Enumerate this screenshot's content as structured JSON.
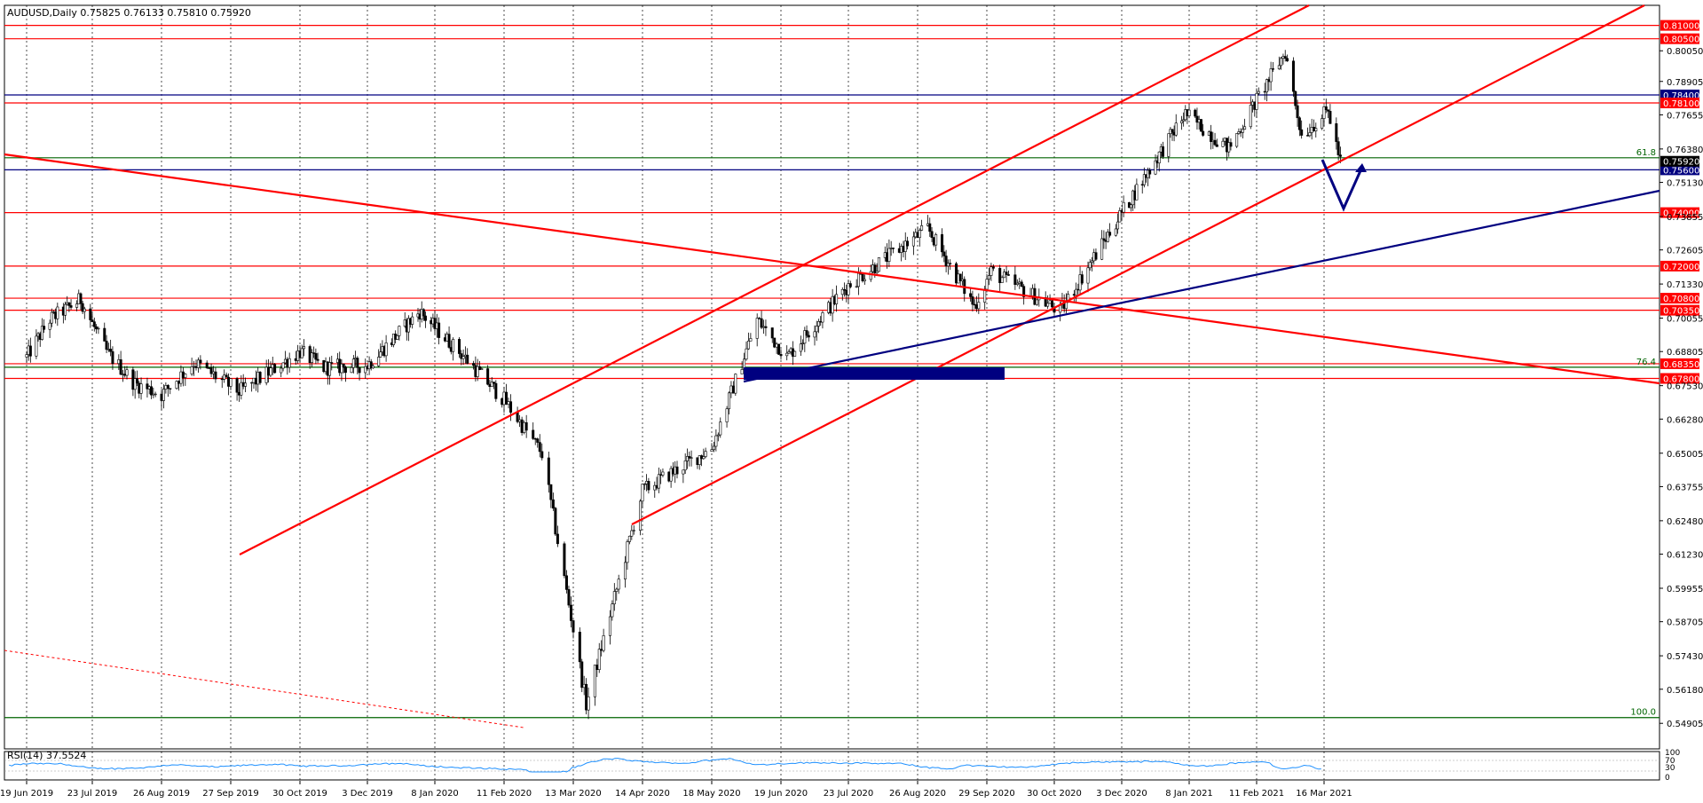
{
  "chart_data": {
    "type": "candlestick",
    "symbol_header": "AUDUSD,Daily  0.75825 0.76133 0.75810 0.75920",
    "price_ticks": [
      "0.80050",
      "0.78905",
      "0.77655",
      "0.76380",
      "0.75130",
      "0.73855",
      "0.72605",
      "0.71330",
      "0.70055",
      "0.68805",
      "0.67530",
      "0.66280",
      "0.65005",
      "0.63755",
      "0.62480",
      "0.61230",
      "0.59955",
      "0.58705",
      "0.57430",
      "0.56180",
      "0.54905"
    ],
    "date_ticks": [
      "19 Jun 2019",
      "23 Jul 2019",
      "26 Aug 2019",
      "27 Sep 2019",
      "30 Oct 2019",
      "3 Dec 2019",
      "8 Jan 2020",
      "11 Feb 2020",
      "13 Mar 2020",
      "14 Apr 2020",
      "18 May 2020",
      "19 Jun 2020",
      "23 Jul 2020",
      "26 Aug 2020",
      "29 Sep 2020",
      "30 Oct 2020",
      "3 Dec 2020",
      "8 Jan 2021",
      "11 Feb 2021",
      "16 Mar 2021"
    ],
    "ylim": [
      0.5395,
      0.8175
    ],
    "horizontal_levels": [
      {
        "label": "0.81000",
        "value": 0.81,
        "color": "#ff0000"
      },
      {
        "label": "0.80500",
        "value": 0.805,
        "color": "#ff0000"
      },
      {
        "label": "0.78400",
        "value": 0.784,
        "color": "#000080"
      },
      {
        "label": "0.78100",
        "value": 0.781,
        "color": "#ff0000"
      },
      {
        "label": "0.75600",
        "value": 0.756,
        "color": "#000080"
      },
      {
        "label": "0.74000",
        "value": 0.74,
        "color": "#ff0000"
      },
      {
        "label": "0.72000",
        "value": 0.72,
        "color": "#ff0000"
      },
      {
        "label": "0.70800",
        "value": 0.708,
        "color": "#ff0000"
      },
      {
        "label": "0.70350",
        "value": 0.7035,
        "color": "#ff0000"
      },
      {
        "label": "0.68350",
        "value": 0.6835,
        "color": "#ff0000"
      },
      {
        "label": "0.67800",
        "value": 0.678,
        "color": "#ff0000"
      }
    ],
    "current_price": {
      "label": "0.75920",
      "value": 0.7592
    },
    "fibonacci": [
      {
        "label": "61.8",
        "value": 0.7605
      },
      {
        "label": "76.4",
        "value": 0.6822
      },
      {
        "label": "100.0",
        "value": 0.5512
      }
    ],
    "rsi": {
      "label": "RSI(14) 37.5524",
      "levels": [
        "100",
        "70",
        "30",
        "0"
      ]
    },
    "price_path_anchors": [
      [
        "19 Jun 2019",
        0.686
      ],
      [
        "1 Jul 2019",
        0.7
      ],
      [
        "17 Jul 2019",
        0.7075
      ],
      [
        "30 Jul 2019",
        0.688
      ],
      [
        "13 Aug 2019",
        0.676
      ],
      [
        "26 Aug 2019",
        0.672
      ],
      [
        "10 Sep 2019",
        0.684
      ],
      [
        "1 Oct 2019",
        0.673
      ],
      [
        "30 Oct 2019",
        0.688
      ],
      [
        "11 Nov 2019",
        0.682
      ],
      [
        "3 Dec 2019",
        0.683
      ],
      [
        "31 Dec 2019",
        0.703
      ],
      [
        "20 Jan 2020",
        0.688
      ],
      [
        "11 Feb 2020",
        0.67
      ],
      [
        "28 Feb 2020",
        0.65
      ],
      [
        "19 Mar 2020",
        0.556
      ],
      [
        "14 Apr 2020",
        0.636
      ],
      [
        "18 May 2020",
        0.652
      ],
      [
        "8 Jun 2020",
        0.7
      ],
      [
        "22 Jun 2020",
        0.686
      ],
      [
        "23 Jul 2020",
        0.713
      ],
      [
        "31 Aug 2020",
        0.734
      ],
      [
        "23 Sep 2020",
        0.705
      ],
      [
        "1 Oct 2020",
        0.718
      ],
      [
        "2 Nov 2020",
        0.703
      ],
      [
        "3 Dec 2020",
        0.74
      ],
      [
        "6 Jan 2021",
        0.777
      ],
      [
        "28 Jan 2021",
        0.764
      ],
      [
        "25 Feb 2021",
        0.8
      ],
      [
        "5 Mar 2021",
        0.769
      ],
      [
        "18 Mar 2021",
        0.778
      ],
      [
        "24 Mar 2021",
        0.759
      ]
    ]
  },
  "colors": {
    "candle": "#000000",
    "support_resistance": "#ff0000",
    "navy": "#000080",
    "fib": "#006400",
    "grid": "#000000",
    "rsi_line": "#1e90ff"
  }
}
